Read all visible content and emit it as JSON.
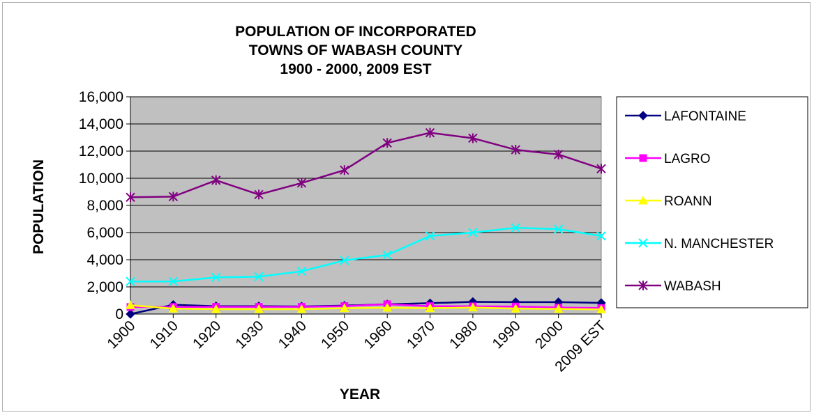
{
  "chart_data": {
    "type": "line",
    "title": [
      "POPULATION OF INCORPORATED",
      "TOWNS OF WABASH COUNTY",
      "1900 - 2000, 2009 EST"
    ],
    "xlabel": "YEAR",
    "ylabel": "POPULATION",
    "ylim": [
      0,
      16000
    ],
    "yticks": [
      0,
      2000,
      4000,
      6000,
      8000,
      10000,
      12000,
      14000,
      16000
    ],
    "ytick_labels": [
      "0",
      "2,000",
      "4,000",
      "6,000",
      "8,000",
      "10,000",
      "12,000",
      "14,000",
      "16,000"
    ],
    "categories": [
      "1900",
      "1910",
      "1920",
      "1930",
      "1940",
      "1950",
      "1960",
      "1970",
      "1980",
      "1990",
      "2000",
      "2009 EST"
    ],
    "grid": true,
    "legend_position": "right",
    "series": [
      {
        "name": "LAFONTAINE",
        "color": "#000080",
        "marker": "diamond",
        "values": [
          0,
          680,
          580,
          580,
          560,
          620,
          720,
          800,
          900,
          880,
          880,
          820
        ]
      },
      {
        "name": "LAGRO",
        "color": "#ff00ff",
        "marker": "square",
        "values": [
          520,
          520,
          530,
          530,
          530,
          580,
          720,
          580,
          570,
          550,
          480,
          440
        ]
      },
      {
        "name": "ROANN",
        "color": "#ffff00",
        "marker": "triangle",
        "values": [
          650,
          400,
          360,
          360,
          360,
          430,
          460,
          430,
          480,
          400,
          380,
          340
        ]
      },
      {
        "name": "N. MANCHESTER",
        "color": "#00ffff",
        "marker": "x",
        "values": [
          2400,
          2400,
          2700,
          2750,
          3150,
          3950,
          4350,
          5750,
          6000,
          6350,
          6250,
          5750
        ]
      },
      {
        "name": "WABASH",
        "color": "#800080",
        "marker": "star",
        "values": [
          8600,
          8650,
          9850,
          8800,
          9650,
          10600,
          12600,
          13350,
          12950,
          12100,
          11750,
          10700
        ]
      }
    ]
  }
}
